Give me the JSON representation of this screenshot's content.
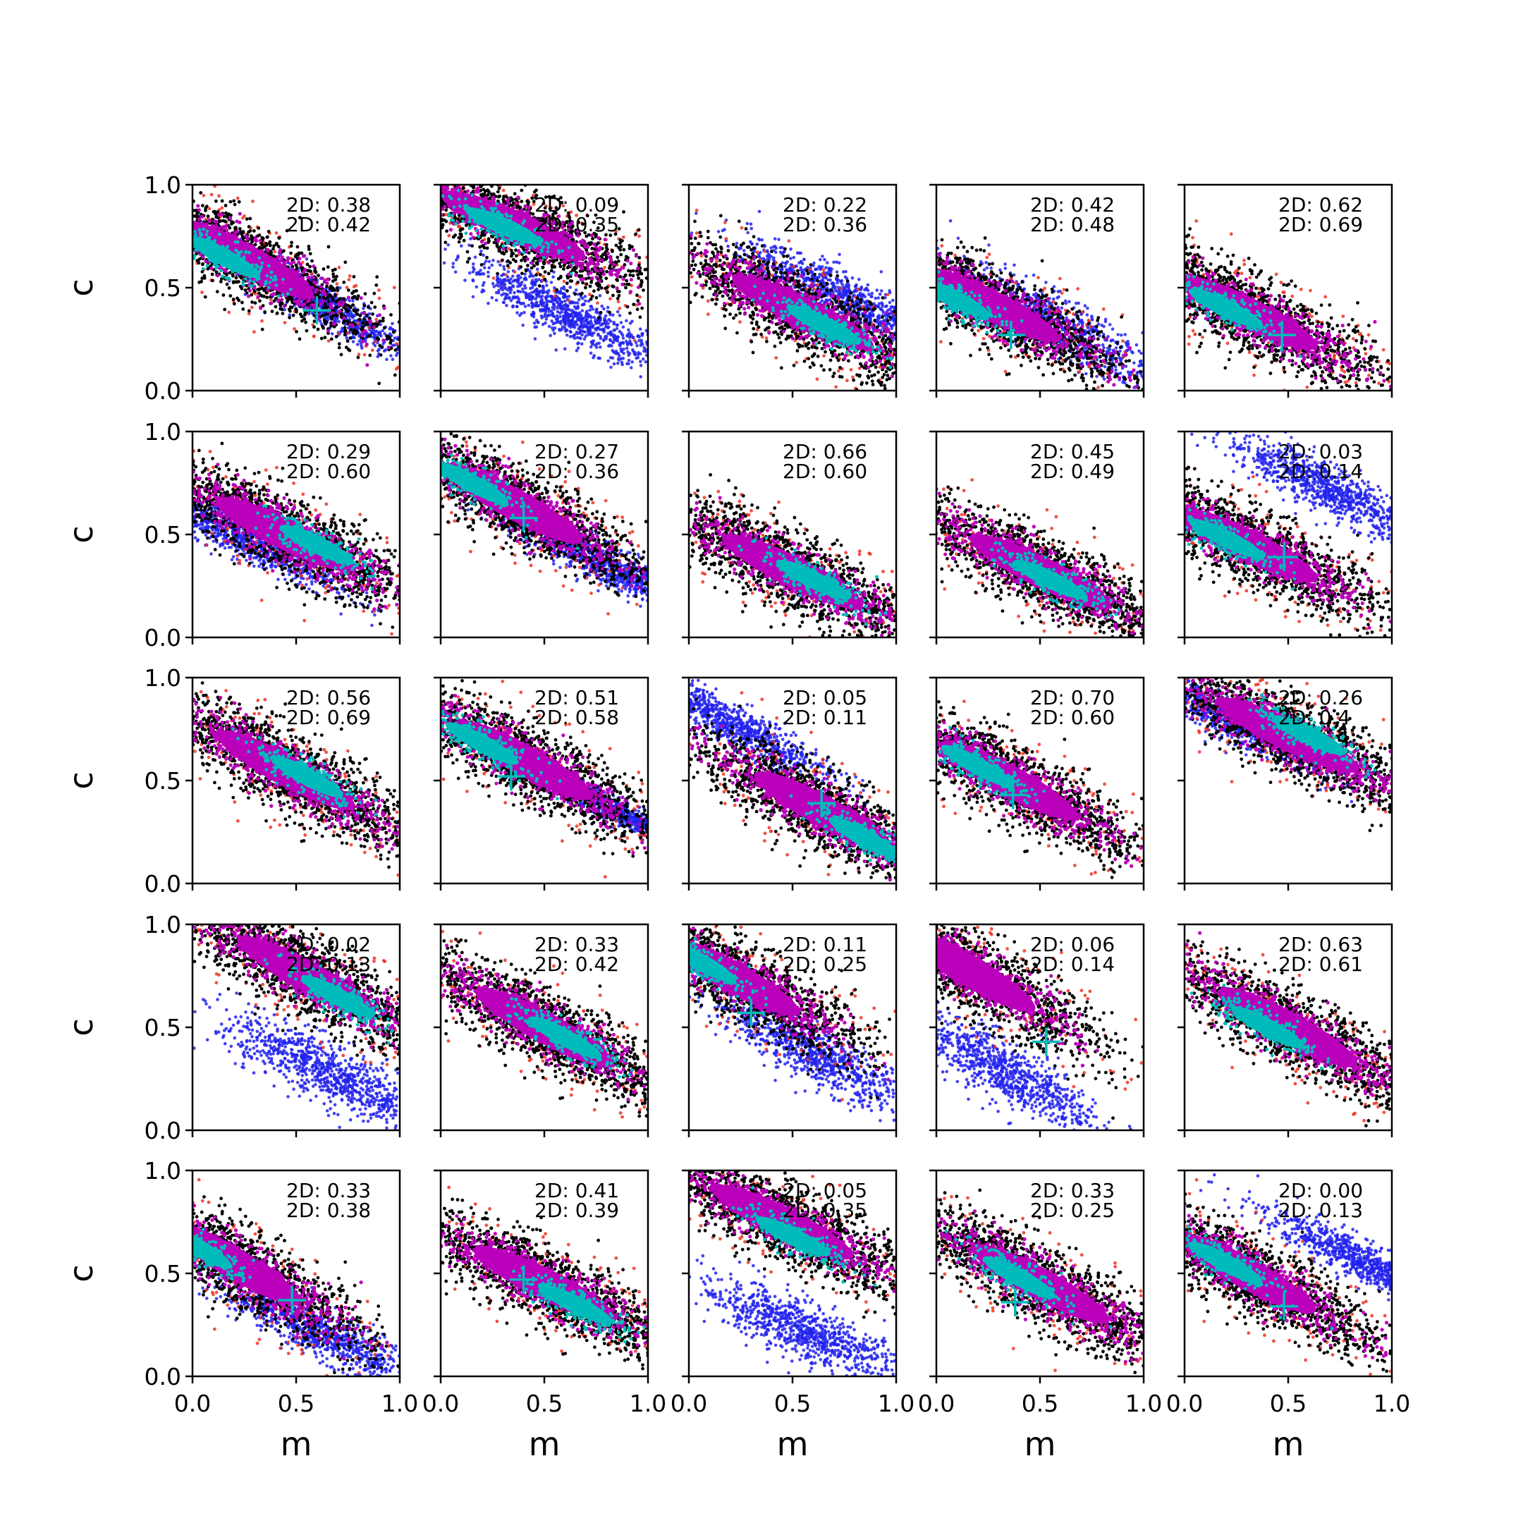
{
  "figure": {
    "colors": {
      "red": "#ee3322",
      "blue": "#2222ee",
      "black": "#000000",
      "magenta": "#bb00bb",
      "cyan": "#00bbbb",
      "axes": "#000000"
    }
  },
  "chart_data": {
    "type": "scatter",
    "grid": {
      "rows": 5,
      "cols": 5
    },
    "xlabel": "m",
    "ylabel": "c",
    "xlim": [
      0,
      1
    ],
    "ylim": [
      0,
      1
    ],
    "xticks": [
      0.0,
      0.5,
      1.0
    ],
    "yticks": [
      0.0,
      0.5,
      1.0
    ],
    "xtick_labels": [
      "0.0",
      "0.5",
      "1.0"
    ],
    "ytick_labels": [
      "0.0",
      "0.5",
      "1.0"
    ],
    "grid_lines": false,
    "panels": [
      {
        "row": 0,
        "col": 0,
        "ann": [
          "2D: 0.38",
          "2D: 0.42"
        ],
        "main": {
          "cx": 0.25,
          "cy": 0.64,
          "slope": -0.55
        },
        "cyan_ellipse": {
          "cx": 0.15,
          "cy": 0.65
        },
        "alt": {
          "cx": 0.58,
          "cy": 0.45,
          "slope": -0.6,
          "spread": 0.1
        },
        "marker": [
          0.6,
          0.39
        ]
      },
      {
        "row": 0,
        "col": 1,
        "ann": [
          "2D: 0.09",
          "2D: 0.35"
        ],
        "main": {
          "cx": 0.35,
          "cy": 0.8,
          "slope": -0.45
        },
        "cyan_ellipse": {
          "cx": 0.3,
          "cy": 0.8
        },
        "alt": {
          "cx": 0.62,
          "cy": 0.37,
          "slope": -0.5,
          "spread": 0.12
        },
        "marker": null
      },
      {
        "row": 0,
        "col": 2,
        "ann": [
          "2D: 0.22",
          "2D: 0.36"
        ],
        "main": {
          "cx": 0.55,
          "cy": 0.38,
          "slope": -0.5
        },
        "cyan_ellipse": {
          "cx": 0.65,
          "cy": 0.32
        },
        "alt": {
          "cx": 0.75,
          "cy": 0.45,
          "slope": -0.5,
          "spread": 0.12
        },
        "marker": null
      },
      {
        "row": 0,
        "col": 3,
        "ann": [
          "2D: 0.42",
          "2D: 0.48"
        ],
        "main": {
          "cx": 0.25,
          "cy": 0.42,
          "slope": -0.5
        },
        "cyan_ellipse": {
          "cx": 0.08,
          "cy": 0.45
        },
        "alt": {
          "cx": 0.55,
          "cy": 0.33,
          "slope": -0.55,
          "spread": 0.14
        },
        "marker": [
          0.36,
          0.27
        ]
      },
      {
        "row": 0,
        "col": 4,
        "ann": [
          "2D: 0.62",
          "2D: 0.69"
        ],
        "main": {
          "cx": 0.3,
          "cy": 0.38,
          "slope": -0.5
        },
        "cyan_ellipse": {
          "cx": 0.2,
          "cy": 0.4
        },
        "alt": null,
        "marker": [
          0.47,
          0.27
        ]
      },
      {
        "row": 1,
        "col": 0,
        "ann": [
          "2D: 0.29",
          "2D: 0.60"
        ],
        "main": {
          "cx": 0.45,
          "cy": 0.5,
          "slope": -0.5
        },
        "cyan_ellipse": {
          "cx": 0.6,
          "cy": 0.45
        },
        "alt": {
          "cx": 0.2,
          "cy": 0.5,
          "slope": -0.5,
          "spread": 0.1
        },
        "marker": null
      },
      {
        "row": 1,
        "col": 1,
        "ann": [
          "2D: 0.27",
          "2D: 0.36"
        ],
        "main": {
          "cx": 0.35,
          "cy": 0.65,
          "slope": -0.55
        },
        "cyan_ellipse": {
          "cx": 0.15,
          "cy": 0.75
        },
        "alt": {
          "cx": 0.8,
          "cy": 0.35,
          "slope": -0.5,
          "spread": 0.1
        },
        "marker": [
          0.4,
          0.58
        ]
      },
      {
        "row": 1,
        "col": 2,
        "ann": [
          "2D: 0.66",
          "2D: 0.60"
        ],
        "main": {
          "cx": 0.5,
          "cy": 0.32,
          "slope": -0.5
        },
        "cyan_ellipse": {
          "cx": 0.6,
          "cy": 0.28
        },
        "alt": null,
        "marker": null
      },
      {
        "row": 1,
        "col": 3,
        "ann": [
          "2D: 0.45",
          "2D: 0.49"
        ],
        "main": {
          "cx": 0.5,
          "cy": 0.32,
          "slope": -0.5
        },
        "cyan_ellipse": {
          "cx": 0.55,
          "cy": 0.28
        },
        "alt": null,
        "marker": null
      },
      {
        "row": 1,
        "col": 4,
        "ann": [
          "2D: 0.03",
          "2D: 0.14"
        ],
        "main": {
          "cx": 0.3,
          "cy": 0.45,
          "slope": -0.5
        },
        "cyan_ellipse": {
          "cx": 0.2,
          "cy": 0.48
        },
        "alt": {
          "cx": 0.7,
          "cy": 0.72,
          "slope": -0.5,
          "spread": 0.12
        },
        "marker": [
          0.48,
          0.39
        ]
      },
      {
        "row": 2,
        "col": 0,
        "ann": [
          "2D: 0.56",
          "2D: 0.69"
        ],
        "main": {
          "cx": 0.45,
          "cy": 0.55,
          "slope": -0.55
        },
        "cyan_ellipse": {
          "cx": 0.55,
          "cy": 0.52
        },
        "alt": null,
        "marker": null
      },
      {
        "row": 2,
        "col": 1,
        "ann": [
          "2D: 0.51",
          "2D: 0.58"
        ],
        "main": {
          "cx": 0.4,
          "cy": 0.6,
          "slope": -0.55
        },
        "cyan_ellipse": {
          "cx": 0.2,
          "cy": 0.68
        },
        "alt": {
          "cx": 0.85,
          "cy": 0.35,
          "slope": -0.5,
          "spread": 0.06
        },
        "marker": [
          0.34,
          0.52
        ]
      },
      {
        "row": 2,
        "col": 2,
        "ann": [
          "2D: 0.05",
          "2D: 0.11"
        ],
        "main": {
          "cx": 0.65,
          "cy": 0.35,
          "slope": -0.55
        },
        "cyan_ellipse": {
          "cx": 0.85,
          "cy": 0.22
        },
        "alt": {
          "cx": 0.2,
          "cy": 0.78,
          "slope": -0.55,
          "spread": 0.1
        },
        "marker": [
          0.64,
          0.39
        ]
      },
      {
        "row": 2,
        "col": 3,
        "ann": [
          "2D: 0.70",
          "2D: 0.60"
        ],
        "main": {
          "cx": 0.35,
          "cy": 0.5,
          "slope": -0.55
        },
        "cyan_ellipse": {
          "cx": 0.2,
          "cy": 0.57
        },
        "alt": null,
        "marker": [
          0.37,
          0.43
        ]
      },
      {
        "row": 2,
        "col": 4,
        "ann": [
          "2D: 0.26",
          "2D: 0.4"
        ],
        "main": {
          "cx": 0.5,
          "cy": 0.72,
          "slope": -0.5
        },
        "cyan_ellipse": {
          "cx": 0.6,
          "cy": 0.72
        },
        "alt": {
          "cx": 0.25,
          "cy": 0.78,
          "slope": -0.5,
          "spread": 0.1
        },
        "marker": null
      },
      {
        "row": 3,
        "col": 0,
        "ann": [
          "2D: 0.02",
          "2D: 0.13"
        ],
        "main": {
          "cx": 0.55,
          "cy": 0.75,
          "slope": -0.55
        },
        "cyan_ellipse": {
          "cx": 0.7,
          "cy": 0.65
        },
        "alt": {
          "cx": 0.65,
          "cy": 0.28,
          "slope": -0.5,
          "spread": 0.15
        },
        "marker": null
      },
      {
        "row": 3,
        "col": 1,
        "ann": [
          "2D: 0.33",
          "2D: 0.42"
        ],
        "main": {
          "cx": 0.5,
          "cy": 0.5,
          "slope": -0.55
        },
        "cyan_ellipse": {
          "cx": 0.6,
          "cy": 0.45
        },
        "alt": null,
        "marker": null
      },
      {
        "row": 3,
        "col": 2,
        "ann": [
          "2D: 0.11",
          "2D: 0.25"
        ],
        "main": {
          "cx": 0.2,
          "cy": 0.75,
          "slope": -0.55
        },
        "cyan_ellipse": {
          "cx": 0.05,
          "cy": 0.82
        },
        "alt": {
          "cx": 0.6,
          "cy": 0.38,
          "slope": -0.55,
          "spread": 0.14
        },
        "marker": [
          0.3,
          0.57
        ]
      },
      {
        "row": 3,
        "col": 3,
        "ann": [
          "2D: 0.06",
          "2D: 0.14"
        ],
        "main": {
          "cx": 0.15,
          "cy": 0.78,
          "slope": -0.6
        },
        "cyan_ellipse": null,
        "alt": {
          "cx": 0.3,
          "cy": 0.3,
          "slope": -0.55,
          "spread": 0.15
        },
        "marker": [
          0.53,
          0.43
        ]
      },
      {
        "row": 3,
        "col": 4,
        "ann": [
          "2D: 0.63",
          "2D: 0.61"
        ],
        "main": {
          "cx": 0.5,
          "cy": 0.5,
          "slope": -0.55
        },
        "cyan_ellipse": {
          "cx": 0.4,
          "cy": 0.5
        },
        "alt": null,
        "marker": null
      },
      {
        "row": 4,
        "col": 0,
        "ann": [
          "2D: 0.33",
          "2D: 0.38"
        ],
        "main": {
          "cx": 0.2,
          "cy": 0.55,
          "slope": -0.6
        },
        "cyan_ellipse": {
          "cx": 0.02,
          "cy": 0.63
        },
        "alt": {
          "cx": 0.6,
          "cy": 0.22,
          "slope": -0.5,
          "spread": 0.12
        },
        "marker": [
          0.48,
          0.37
        ]
      },
      {
        "row": 4,
        "col": 1,
        "ann": [
          "2D: 0.41",
          "2D: 0.39"
        ],
        "main": {
          "cx": 0.5,
          "cy": 0.45,
          "slope": -0.5
        },
        "cyan_ellipse": {
          "cx": 0.65,
          "cy": 0.35
        },
        "alt": null,
        "marker": [
          0.4,
          0.47
        ]
      },
      {
        "row": 4,
        "col": 2,
        "ann": [
          "2D: 0.05",
          "2D: 0.35"
        ],
        "main": {
          "cx": 0.45,
          "cy": 0.75,
          "slope": -0.5
        },
        "cyan_ellipse": {
          "cx": 0.5,
          "cy": 0.68
        },
        "alt": {
          "cx": 0.55,
          "cy": 0.22,
          "slope": -0.45,
          "spread": 0.14
        },
        "marker": null
      },
      {
        "row": 4,
        "col": 3,
        "ann": [
          "2D: 0.33",
          "2D: 0.25"
        ],
        "main": {
          "cx": 0.5,
          "cy": 0.45,
          "slope": -0.55
        },
        "cyan_ellipse": {
          "cx": 0.4,
          "cy": 0.48
        },
        "alt": null,
        "marker": [
          0.38,
          0.36
        ]
      },
      {
        "row": 4,
        "col": 4,
        "ann": [
          "2D: 0.00",
          "2D: 0.13"
        ],
        "main": {
          "cx": 0.3,
          "cy": 0.5,
          "slope": -0.55
        },
        "cyan_ellipse": {
          "cx": 0.2,
          "cy": 0.55
        },
        "alt": {
          "cx": 0.88,
          "cy": 0.55,
          "slope": -0.5,
          "spread": 0.1
        },
        "marker": [
          0.48,
          0.34
        ]
      }
    ]
  }
}
